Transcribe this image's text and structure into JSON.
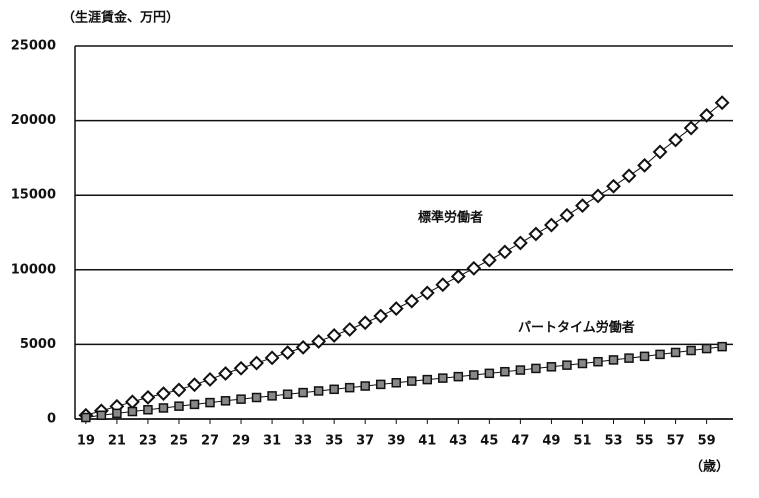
{
  "chart_data": {
    "type": "line",
    "y_label": "（生涯賃金、万円）",
    "x_label": "（歳）",
    "x": [
      19,
      20,
      21,
      22,
      23,
      24,
      25,
      26,
      27,
      28,
      29,
      30,
      31,
      32,
      33,
      34,
      35,
      36,
      37,
      38,
      39,
      40,
      41,
      42,
      43,
      44,
      45,
      46,
      47,
      48,
      49,
      50,
      51,
      52,
      53,
      54,
      55,
      56,
      57,
      58,
      59,
      60
    ],
    "series": [
      {
        "name": "標準労働者",
        "color": "#111111",
        "marker": "diamond",
        "values": [
          250,
          550,
          850,
          1150,
          1450,
          1700,
          1950,
          2300,
          2650,
          3050,
          3400,
          3750,
          4100,
          4450,
          4800,
          5200,
          5600,
          6000,
          6450,
          6900,
          7400,
          7900,
          8450,
          9000,
          9550,
          10100,
          10650,
          11200,
          11800,
          12400,
          13000,
          13650,
          14300,
          14950,
          15600,
          16300,
          17000,
          17900,
          18700,
          19500,
          20350,
          21200
        ]
      },
      {
        "name": "パートタイム労働者",
        "color": "#111111",
        "marker": "square",
        "values": [
          100,
          250,
          380,
          500,
          620,
          740,
          860,
          980,
          1100,
          1220,
          1330,
          1440,
          1550,
          1660,
          1770,
          1880,
          1990,
          2100,
          2210,
          2320,
          2430,
          2540,
          2640,
          2740,
          2840,
          2950,
          3060,
          3170,
          3280,
          3390,
          3500,
          3610,
          3720,
          3840,
          3960,
          4080,
          4200,
          4330,
          4460,
          4590,
          4720,
          4850
        ]
      }
    ],
    "xlim": [
      18.3,
      60.7
    ],
    "xticks": [
      19,
      21,
      23,
      25,
      27,
      29,
      31,
      33,
      35,
      37,
      39,
      41,
      43,
      45,
      47,
      49,
      51,
      53,
      55,
      57,
      59
    ],
    "ylim": [
      0,
      25000
    ],
    "yticks": [
      0,
      5000,
      10000,
      15000,
      20000,
      25000
    ],
    "grid": true
  }
}
